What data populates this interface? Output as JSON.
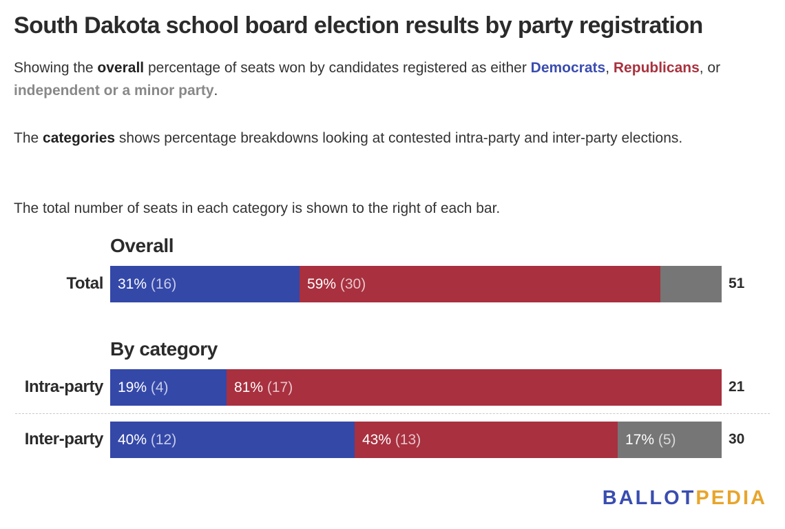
{
  "title": "South Dakota school board election results by party registration",
  "desc1": {
    "p1": "Showing the ",
    "overall": "overall",
    "p2": " percentage of seats won by candidates registered as either ",
    "democrats": "Democrats",
    "p3": ", ",
    "republicans": "Republicans",
    "p4": ", or ",
    "independent": "independent or a minor party",
    "p5": "."
  },
  "desc2": {
    "p1": "The ",
    "categories": "categories",
    "p2": " shows percentage breakdowns looking at contested intra-party and inter-party elections."
  },
  "desc3": "The total number of seats in each category is shown to the right of each bar.",
  "colors": {
    "democrat": "#3448a8",
    "republican": "#a8303f",
    "independent": "#767676"
  },
  "chart_data": {
    "type": "bar",
    "orientation": "horizontal",
    "stacked": true,
    "normalized": true,
    "series_names": [
      "Democrats",
      "Republicans",
      "independent or a minor party"
    ],
    "sections": [
      {
        "title": "Overall",
        "rows": [
          {
            "label": "Total",
            "total": "51",
            "segments": [
              {
                "party": "democrat",
                "pct": 31,
                "text": "31%",
                "count": "(16)"
              },
              {
                "party": "republican",
                "pct": 59,
                "text": "59%",
                "count": "(30)"
              },
              {
                "party": "independent",
                "pct": 10,
                "text": "",
                "count": ""
              }
            ]
          }
        ]
      },
      {
        "title": "By category",
        "rows": [
          {
            "label": "Intra-party",
            "total": "21",
            "segments": [
              {
                "party": "democrat",
                "pct": 19,
                "text": "19%",
                "count": "(4)"
              },
              {
                "party": "republican",
                "pct": 81,
                "text": "81%",
                "count": "(17)"
              }
            ]
          },
          {
            "label": "Inter-party",
            "total": "30",
            "segments": [
              {
                "party": "democrat",
                "pct": 40,
                "text": "40%",
                "count": "(12)"
              },
              {
                "party": "republican",
                "pct": 43,
                "text": "43%",
                "count": "(13)"
              },
              {
                "party": "independent",
                "pct": 17,
                "text": "17%",
                "count": "(5)"
              }
            ]
          }
        ]
      }
    ]
  },
  "logo": {
    "part1": "BALLOT",
    "part2": "PEDIA"
  }
}
